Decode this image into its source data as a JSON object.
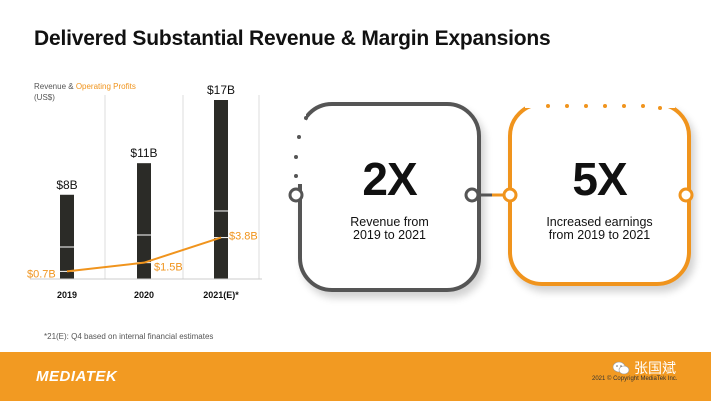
{
  "title": "Delivered Substantial Revenue & Margin Expansions",
  "legend": {
    "part1": "Revenue & ",
    "part2": "Operating Profits",
    "unit": "(US$)"
  },
  "chart_data": {
    "type": "bar",
    "categories": [
      "2019",
      "2020",
      "2021(E)*"
    ],
    "series": [
      {
        "name": "Revenue",
        "type": "bar",
        "values": [
          8,
          11,
          17
        ],
        "labels": [
          "$8B",
          "$11B",
          "$17B"
        ],
        "color": "#2b2b27"
      },
      {
        "name": "Operating Profits",
        "type": "line",
        "values": [
          0.7,
          1.5,
          3.8
        ],
        "labels": [
          "$0.7B",
          "$1.5B",
          "$3.8B"
        ],
        "color": "#f0941d"
      }
    ],
    "ylim": [
      0,
      17
    ],
    "grid": true
  },
  "cards": [
    {
      "value": "2X",
      "line1": "Revenue from",
      "line2": "2019 to 2021",
      "border_color": "#555555"
    },
    {
      "value": "5X",
      "line1": "Increased earnings",
      "line2": "from 2019 to 2021",
      "border_color": "#f0941d"
    }
  ],
  "footnote": "*21(E): Q4 based on internal financial estimates",
  "footer": {
    "logo": "MEDIATEK",
    "copyright": "2021 © Copyright MediaTek Inc.",
    "watermark": "张国斌",
    "background": "#f29a22"
  }
}
